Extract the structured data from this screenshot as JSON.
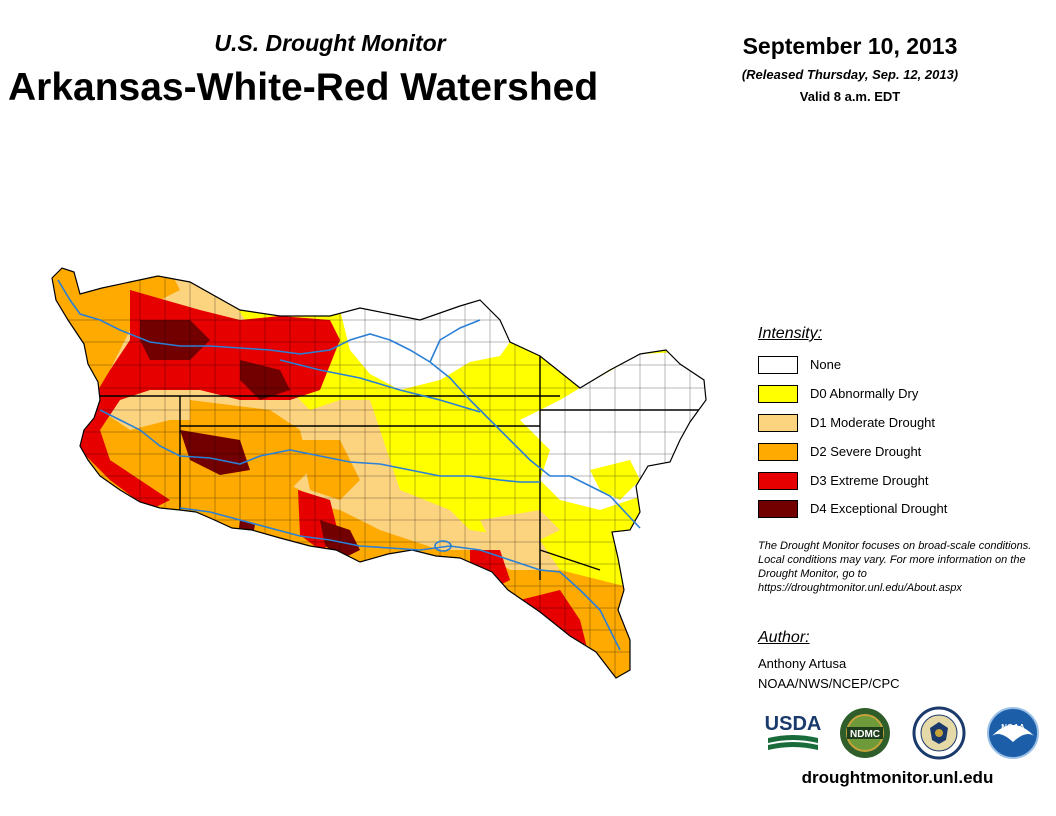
{
  "header": {
    "subtitle": "U.S. Drought Monitor",
    "title": "Arkansas-White-Red Watershed",
    "date": "September 10, 2013",
    "released": "(Released Thursday, Sep. 12, 2013)",
    "valid": "Valid 8 a.m. EDT"
  },
  "legend": {
    "title": "Intensity:",
    "items": [
      {
        "label": "None",
        "color": "#ffffff"
      },
      {
        "label": "D0 Abnormally Dry",
        "color": "#ffff00"
      },
      {
        "label": "D1 Moderate Drought",
        "color": "#fcd37f"
      },
      {
        "label": "D2 Severe Drought",
        "color": "#ffaa00"
      },
      {
        "label": "D3 Extreme Drought",
        "color": "#e60000"
      },
      {
        "label": "D4 Exceptional Drought",
        "color": "#730000"
      }
    ]
  },
  "note": "The Drought Monitor focuses on broad-scale conditions. Local conditions may vary. For more information on the Drought Monitor, go to https://droughtmonitor.unl.edu/About.aspx",
  "author": {
    "heading": "Author:",
    "name": "Anthony Artusa",
    "org": "NOAA/NWS/NCEP/CPC"
  },
  "logos": {
    "usda": "USDA",
    "ndmc": "NDMC",
    "noaa": "NOAA"
  },
  "footer": {
    "url": "droughtmonitor.unl.edu"
  },
  "colors": {
    "river": "#2a7fd6",
    "boundary": "#000000"
  }
}
